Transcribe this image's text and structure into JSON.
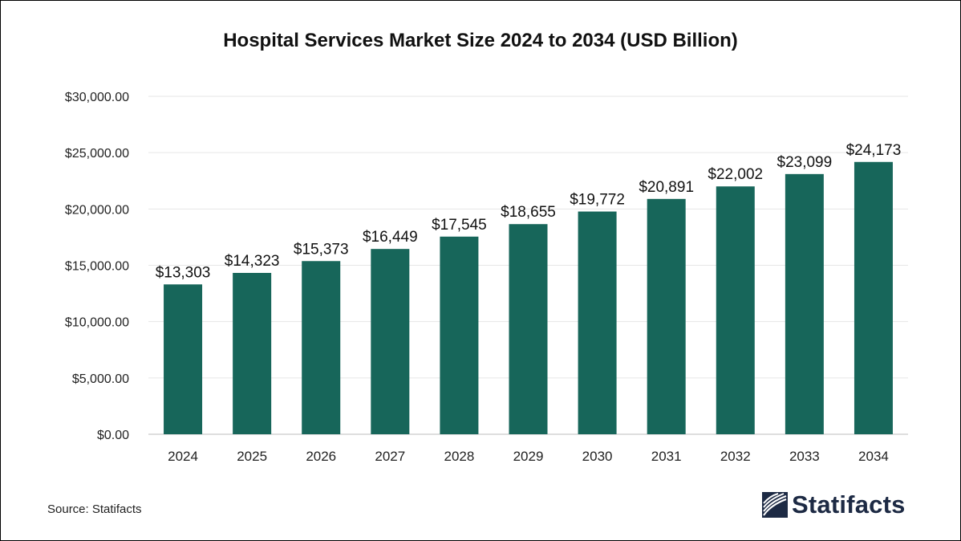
{
  "chart_data": {
    "type": "bar",
    "title": "Hospital Services Market Size 2024 to 2034 (USD Billion)",
    "categories": [
      "2024",
      "2025",
      "2026",
      "2027",
      "2028",
      "2029",
      "2030",
      "2031",
      "2032",
      "2033",
      "2034"
    ],
    "values": [
      13303,
      14323,
      15373,
      16449,
      17545,
      18655,
      19772,
      20891,
      22002,
      23099,
      24173
    ],
    "data_labels": [
      "$13,303",
      "$14,323",
      "$15,373",
      "$16,449",
      "$17,545",
      "$18,655",
      "$19,772",
      "$20,891",
      "$22,002",
      "$23,099",
      "$24,173"
    ],
    "ylim": [
      0,
      30000
    ],
    "yticks": [
      0,
      5000,
      10000,
      15000,
      20000,
      25000,
      30000
    ],
    "ytick_labels": [
      "$0.00",
      "$5,000.00",
      "$10,000.00",
      "$15,000.00",
      "$20,000.00",
      "$25,000.00",
      "$30,000.00"
    ],
    "xlabel": "",
    "ylabel": "",
    "grid": true,
    "bar_color": "#17665a"
  },
  "footer": {
    "source": "Source: Statifacts",
    "logo_text": "Statifacts",
    "logo_icon": "statifacts-logo-icon"
  }
}
